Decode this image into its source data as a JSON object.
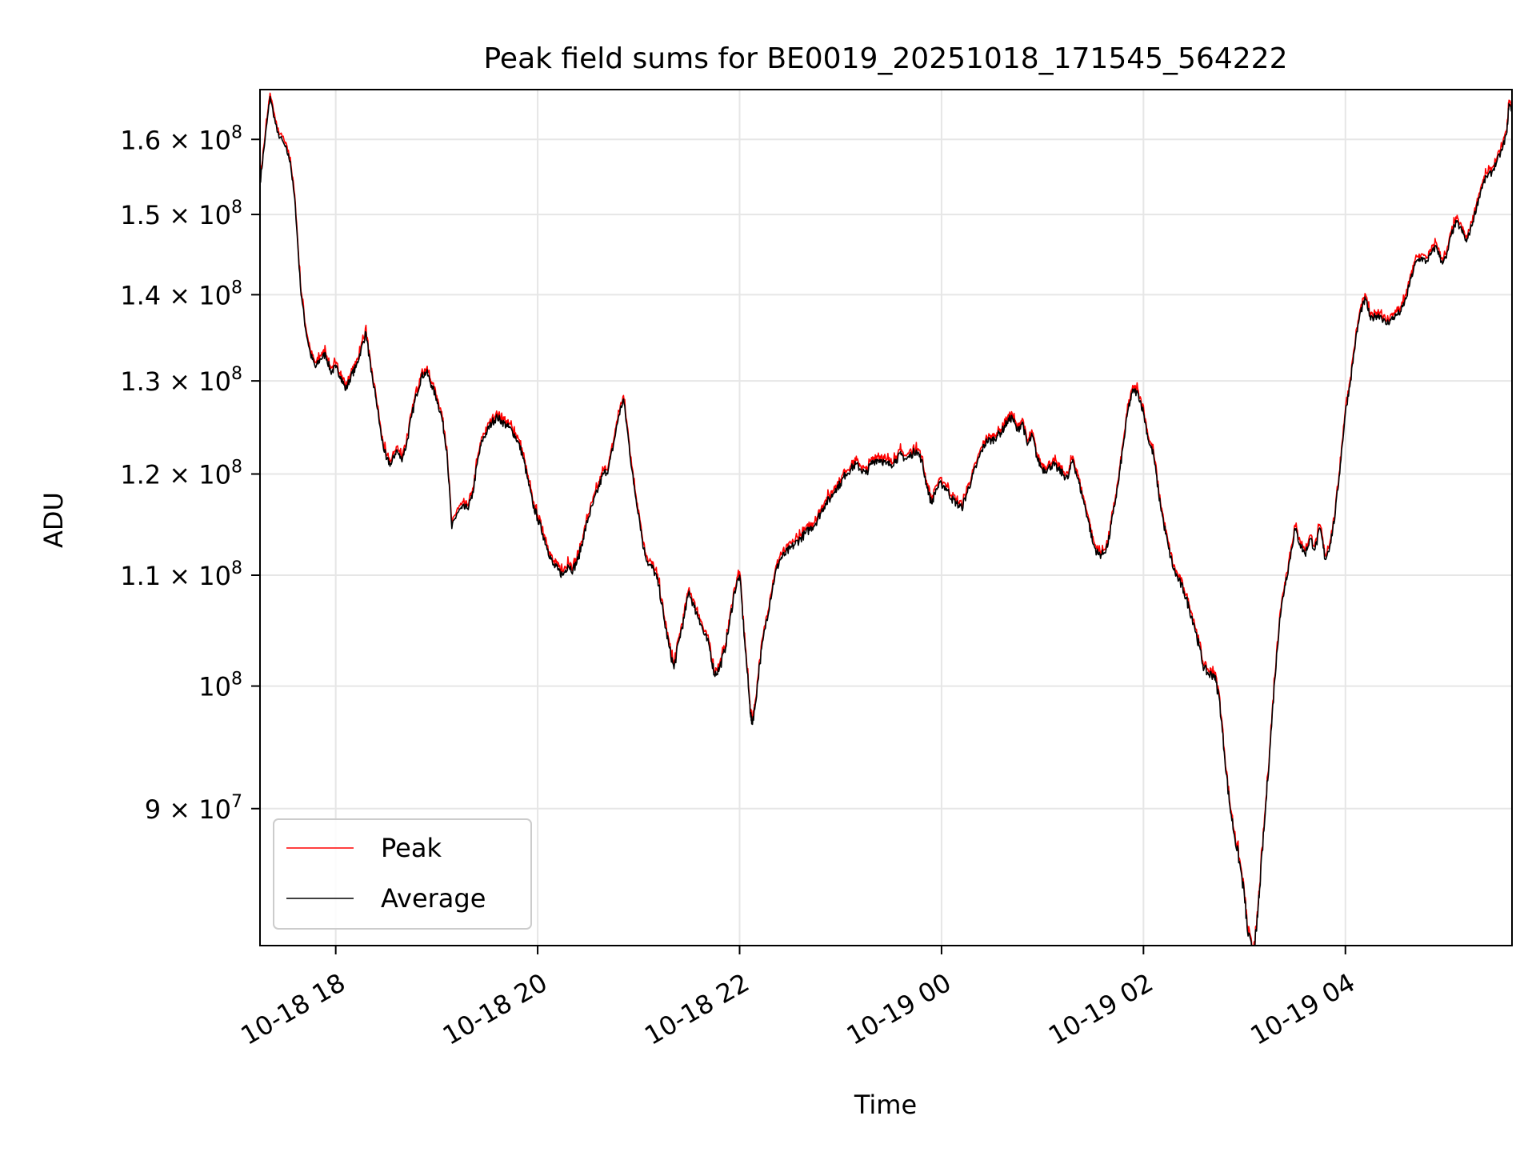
{
  "chart_data": {
    "type": "line",
    "title": "Peak field sums for BE0019_20251018_171545_564222",
    "xlabel": "Time",
    "ylabel": "ADU",
    "yscale": "log",
    "xlim_hours": [
      17.25,
      29.65
    ],
    "ylim": [
      80000000,
      167000000
    ],
    "grid": true,
    "legend_location": "lower-left",
    "x_ticks": [
      {
        "hour": 18,
        "label": "10-18 18"
      },
      {
        "hour": 20,
        "label": "10-18 20"
      },
      {
        "hour": 22,
        "label": "10-18 22"
      },
      {
        "hour": 24,
        "label": "10-19 00"
      },
      {
        "hour": 26,
        "label": "10-19 02"
      },
      {
        "hour": 28,
        "label": "10-19 04"
      }
    ],
    "y_ticks": [
      {
        "value": 90000000,
        "mantissa": "9",
        "exponent": "7"
      },
      {
        "value": 100000000,
        "mantissa": "",
        "exponent": "8"
      },
      {
        "value": 110000000,
        "mantissa": "1.1",
        "exponent": "8"
      },
      {
        "value": 120000000,
        "mantissa": "1.2",
        "exponent": "8"
      },
      {
        "value": 130000000,
        "mantissa": "1.3",
        "exponent": "8"
      },
      {
        "value": 140000000,
        "mantissa": "1.4",
        "exponent": "8"
      },
      {
        "value": 150000000,
        "mantissa": "1.5",
        "exponent": "8"
      },
      {
        "value": 160000000,
        "mantissa": "1.6",
        "exponent": "8"
      }
    ],
    "series": [
      {
        "name": "Peak",
        "color": "#ff0000"
      },
      {
        "name": "Average",
        "color": "#000000"
      }
    ],
    "average_points": [
      [
        17.25,
        154.0
      ],
      [
        17.3,
        160.0
      ],
      [
        17.35,
        166.0
      ],
      [
        17.42,
        161.0
      ],
      [
        17.5,
        159.0
      ],
      [
        17.55,
        157.0
      ],
      [
        17.6,
        151.0
      ],
      [
        17.65,
        141.0
      ],
      [
        17.7,
        136.0
      ],
      [
        17.75,
        133.0
      ],
      [
        17.8,
        131.5
      ],
      [
        17.85,
        132.5
      ],
      [
        17.9,
        133.0
      ],
      [
        17.95,
        131.0
      ],
      [
        18.0,
        131.5
      ],
      [
        18.05,
        130.5
      ],
      [
        18.1,
        129.0
      ],
      [
        18.15,
        130.5
      ],
      [
        18.2,
        131.5
      ],
      [
        18.25,
        133.5
      ],
      [
        18.3,
        135.5
      ],
      [
        18.35,
        131.0
      ],
      [
        18.4,
        128.0
      ],
      [
        18.45,
        124.0
      ],
      [
        18.5,
        121.5
      ],
      [
        18.55,
        121.0
      ],
      [
        18.6,
        122.5
      ],
      [
        18.65,
        121.5
      ],
      [
        18.7,
        123.0
      ],
      [
        18.75,
        126.0
      ],
      [
        18.8,
        128.5
      ],
      [
        18.85,
        130.5
      ],
      [
        18.9,
        131.0
      ],
      [
        18.95,
        129.5
      ],
      [
        19.0,
        128.0
      ],
      [
        19.05,
        126.0
      ],
      [
        19.1,
        122.5
      ],
      [
        19.15,
        114.5
      ],
      [
        19.2,
        116.0
      ],
      [
        19.25,
        116.5
      ],
      [
        19.3,
        116.5
      ],
      [
        19.35,
        117.5
      ],
      [
        19.4,
        121.0
      ],
      [
        19.45,
        123.5
      ],
      [
        19.5,
        124.5
      ],
      [
        19.55,
        125.5
      ],
      [
        19.6,
        126.0
      ],
      [
        19.65,
        125.5
      ],
      [
        19.7,
        125.0
      ],
      [
        19.75,
        124.5
      ],
      [
        19.8,
        123.5
      ],
      [
        19.85,
        122.0
      ],
      [
        19.9,
        119.5
      ],
      [
        19.95,
        117.0
      ],
      [
        20.0,
        115.5
      ],
      [
        20.05,
        114.0
      ],
      [
        20.1,
        112.5
      ],
      [
        20.15,
        111.0
      ],
      [
        20.2,
        110.5
      ],
      [
        20.25,
        110.0
      ],
      [
        20.3,
        111.0
      ],
      [
        20.35,
        110.5
      ],
      [
        20.4,
        111.5
      ],
      [
        20.45,
        113.5
      ],
      [
        20.5,
        115.5
      ],
      [
        20.55,
        117.0
      ],
      [
        20.6,
        118.5
      ],
      [
        20.65,
        120.0
      ],
      [
        20.7,
        120.5
      ],
      [
        20.75,
        123.0
      ],
      [
        20.8,
        126.0
      ],
      [
        20.85,
        128.0
      ],
      [
        20.9,
        123.5
      ],
      [
        20.95,
        119.0
      ],
      [
        21.0,
        116.0
      ],
      [
        21.05,
        112.5
      ],
      [
        21.1,
        111.0
      ],
      [
        21.15,
        110.5
      ],
      [
        21.2,
        109.0
      ],
      [
        21.25,
        106.0
      ],
      [
        21.3,
        103.5
      ],
      [
        21.35,
        101.5
      ],
      [
        21.4,
        104.0
      ],
      [
        21.45,
        106.0
      ],
      [
        21.5,
        108.5
      ],
      [
        21.55,
        107.0
      ],
      [
        21.6,
        106.0
      ],
      [
        21.65,
        104.5
      ],
      [
        21.7,
        103.5
      ],
      [
        21.75,
        101.0
      ],
      [
        21.8,
        101.5
      ],
      [
        21.85,
        103.0
      ],
      [
        21.9,
        105.5
      ],
      [
        21.95,
        108.5
      ],
      [
        22.0,
        110.0
      ],
      [
        22.05,
        104.0
      ],
      [
        22.1,
        98.5
      ],
      [
        22.12,
        96.8
      ],
      [
        22.15,
        98.0
      ],
      [
        22.2,
        102.0
      ],
      [
        22.25,
        105.0
      ],
      [
        22.3,
        107.5
      ],
      [
        22.35,
        110.0
      ],
      [
        22.4,
        111.5
      ],
      [
        22.45,
        112.0
      ],
      [
        22.5,
        112.5
      ],
      [
        22.55,
        113.0
      ],
      [
        22.6,
        113.5
      ],
      [
        22.65,
        114.0
      ],
      [
        22.7,
        114.5
      ],
      [
        22.75,
        115.0
      ],
      [
        22.8,
        116.0
      ],
      [
        22.85,
        117.0
      ],
      [
        22.9,
        117.5
      ],
      [
        22.95,
        118.5
      ],
      [
        23.0,
        119.0
      ],
      [
        23.05,
        120.0
      ],
      [
        23.1,
        120.5
      ],
      [
        23.15,
        121.0
      ],
      [
        23.2,
        120.5
      ],
      [
        23.25,
        120.0
      ],
      [
        23.3,
        121.0
      ],
      [
        23.35,
        121.5
      ],
      [
        23.4,
        121.5
      ],
      [
        23.45,
        121.0
      ],
      [
        23.5,
        121.0
      ],
      [
        23.55,
        121.5
      ],
      [
        23.6,
        122.0
      ],
      [
        23.65,
        121.5
      ],
      [
        23.7,
        122.0
      ],
      [
        23.75,
        122.5
      ],
      [
        23.8,
        121.5
      ],
      [
        23.85,
        119.0
      ],
      [
        23.9,
        117.0
      ],
      [
        23.95,
        118.5
      ],
      [
        24.0,
        119.0
      ],
      [
        24.05,
        118.5
      ],
      [
        24.1,
        117.5
      ],
      [
        24.15,
        117.0
      ],
      [
        24.2,
        116.5
      ],
      [
        24.25,
        118.0
      ],
      [
        24.3,
        119.5
      ],
      [
        24.35,
        121.0
      ],
      [
        24.4,
        122.5
      ],
      [
        24.45,
        123.5
      ],
      [
        24.5,
        123.5
      ],
      [
        24.55,
        124.0
      ],
      [
        24.6,
        124.5
      ],
      [
        24.65,
        125.5
      ],
      [
        24.7,
        126.0
      ],
      [
        24.75,
        124.5
      ],
      [
        24.8,
        125.5
      ],
      [
        24.85,
        123.0
      ],
      [
        24.9,
        124.0
      ],
      [
        24.95,
        121.5
      ],
      [
        25.0,
        120.5
      ],
      [
        25.05,
        120.5
      ],
      [
        25.1,
        121.0
      ],
      [
        25.15,
        120.5
      ],
      [
        25.2,
        120.0
      ],
      [
        25.25,
        119.5
      ],
      [
        25.3,
        121.5
      ],
      [
        25.35,
        119.5
      ],
      [
        25.4,
        117.5
      ],
      [
        25.45,
        115.5
      ],
      [
        25.5,
        113.0
      ],
      [
        25.55,
        112.0
      ],
      [
        25.6,
        112.0
      ],
      [
        25.65,
        113.0
      ],
      [
        25.7,
        116.0
      ],
      [
        25.75,
        119.0
      ],
      [
        25.8,
        123.0
      ],
      [
        25.85,
        127.0
      ],
      [
        25.9,
        129.0
      ],
      [
        25.95,
        128.5
      ],
      [
        26.0,
        126.5
      ],
      [
        26.05,
        123.5
      ],
      [
        26.1,
        122.0
      ],
      [
        26.15,
        118.0
      ],
      [
        26.2,
        115.0
      ],
      [
        26.25,
        112.5
      ],
      [
        26.3,
        110.5
      ],
      [
        26.35,
        109.5
      ],
      [
        26.4,
        108.5
      ],
      [
        26.45,
        107.0
      ],
      [
        26.5,
        105.5
      ],
      [
        26.55,
        103.5
      ],
      [
        26.6,
        101.5
      ],
      [
        26.65,
        101.0
      ],
      [
        26.7,
        101.0
      ],
      [
        26.75,
        99.0
      ],
      [
        26.8,
        94.5
      ],
      [
        26.85,
        90.5
      ],
      [
        26.9,
        88.0
      ],
      [
        26.95,
        86.0
      ],
      [
        27.0,
        83.5
      ],
      [
        27.03,
        81.0
      ],
      [
        27.08,
        79.5
      ],
      [
        27.12,
        81.0
      ],
      [
        27.15,
        84.0
      ],
      [
        27.2,
        89.0
      ],
      [
        27.25,
        94.5
      ],
      [
        27.3,
        100.5
      ],
      [
        27.35,
        106.0
      ],
      [
        27.4,
        109.0
      ],
      [
        27.45,
        111.5
      ],
      [
        27.5,
        114.5
      ],
      [
        27.55,
        113.0
      ],
      [
        27.6,
        112.0
      ],
      [
        27.65,
        113.5
      ],
      [
        27.7,
        112.5
      ],
      [
        27.75,
        114.5
      ],
      [
        27.8,
        111.5
      ],
      [
        27.85,
        113.0
      ],
      [
        27.9,
        116.0
      ],
      [
        27.95,
        121.0
      ],
      [
        28.0,
        126.5
      ],
      [
        28.05,
        130.0
      ],
      [
        28.1,
        134.5
      ],
      [
        28.15,
        138.0
      ],
      [
        28.2,
        139.5
      ],
      [
        28.25,
        137.0
      ],
      [
        28.3,
        137.5
      ],
      [
        28.35,
        137.5
      ],
      [
        28.4,
        136.5
      ],
      [
        28.45,
        137.0
      ],
      [
        28.5,
        137.5
      ],
      [
        28.55,
        138.0
      ],
      [
        28.6,
        139.5
      ],
      [
        28.65,
        142.0
      ],
      [
        28.7,
        144.0
      ],
      [
        28.75,
        144.5
      ],
      [
        28.8,
        144.0
      ],
      [
        28.85,
        145.0
      ],
      [
        28.9,
        146.0
      ],
      [
        28.95,
        144.0
      ],
      [
        29.0,
        144.5
      ],
      [
        29.05,
        147.5
      ],
      [
        29.1,
        149.0
      ],
      [
        29.15,
        148.0
      ],
      [
        29.2,
        146.5
      ],
      [
        29.25,
        148.5
      ],
      [
        29.3,
        151.0
      ],
      [
        29.35,
        153.5
      ],
      [
        29.4,
        155.0
      ],
      [
        29.45,
        155.5
      ],
      [
        29.5,
        157.0
      ],
      [
        29.55,
        158.5
      ],
      [
        29.6,
        161.0
      ],
      [
        29.62,
        165.0
      ],
      [
        29.65,
        164.0
      ]
    ]
  }
}
